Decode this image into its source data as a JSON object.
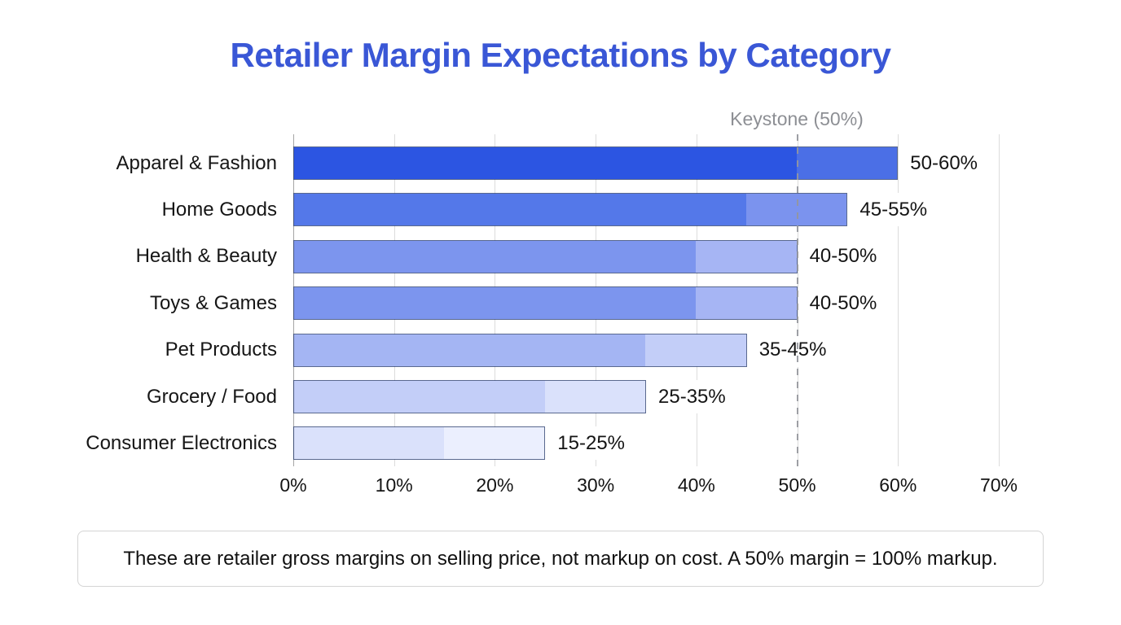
{
  "title": "Retailer Margin Expectations by Category",
  "keystone_label": "Keystone (50%)",
  "note": "These are retailer gross margins on selling price, not markup on cost. A 50% margin = 100% markup.",
  "colors": {
    "title": "#3a57d6",
    "keystone_line": "#94969c",
    "keystone_label_text": "#8d8f94",
    "gridline": "#dcdcdc",
    "axis_line": "#a6a6a6",
    "bar_border": "#23376 9",
    "text": "#141414"
  },
  "chart_data": {
    "type": "bar",
    "orientation": "horizontal",
    "title": "Retailer Margin Expectations by Category",
    "xlabel": "",
    "ylabel": "",
    "xlim": [
      0,
      70
    ],
    "grid": true,
    "categories": [
      "Apparel & Fashion",
      "Home Goods",
      "Health & Beauty",
      "Toys & Games",
      "Pet Products",
      "Grocery / Food",
      "Consumer Electronics"
    ],
    "series": [
      {
        "name": "margin_low_pct",
        "values": [
          50,
          45,
          40,
          40,
          35,
          25,
          15
        ]
      },
      {
        "name": "margin_high_pct",
        "values": [
          60,
          55,
          50,
          50,
          45,
          35,
          25
        ]
      }
    ],
    "bar_labels": [
      "50-60%",
      "45-55%",
      "40-50%",
      "40-50%",
      "35-45%",
      "25-35%",
      "15-25%"
    ],
    "bar_colors": [
      {
        "base": "#2c55e2",
        "range": "#4b6fe6"
      },
      {
        "base": "#5478e9",
        "range": "#7b93ee"
      },
      {
        "base": "#7c95ee",
        "range": "#a6b5f4"
      },
      {
        "base": "#7c95ee",
        "range": "#a6b5f4"
      },
      {
        "base": "#a4b5f3",
        "range": "#c3cef8"
      },
      {
        "base": "#c3cef8",
        "range": "#dae1fb"
      },
      {
        "base": "#dae1fb",
        "range": "#ebeffe"
      }
    ],
    "x_ticks": [
      "0%",
      "10%",
      "20%",
      "30%",
      "40%",
      "50%",
      "60%",
      "70%"
    ],
    "x_tick_values": [
      0,
      10,
      20,
      30,
      40,
      50,
      60,
      70
    ],
    "annotation": {
      "label": "Keystone (50%)",
      "value": 50,
      "line_style": "dashed"
    }
  }
}
